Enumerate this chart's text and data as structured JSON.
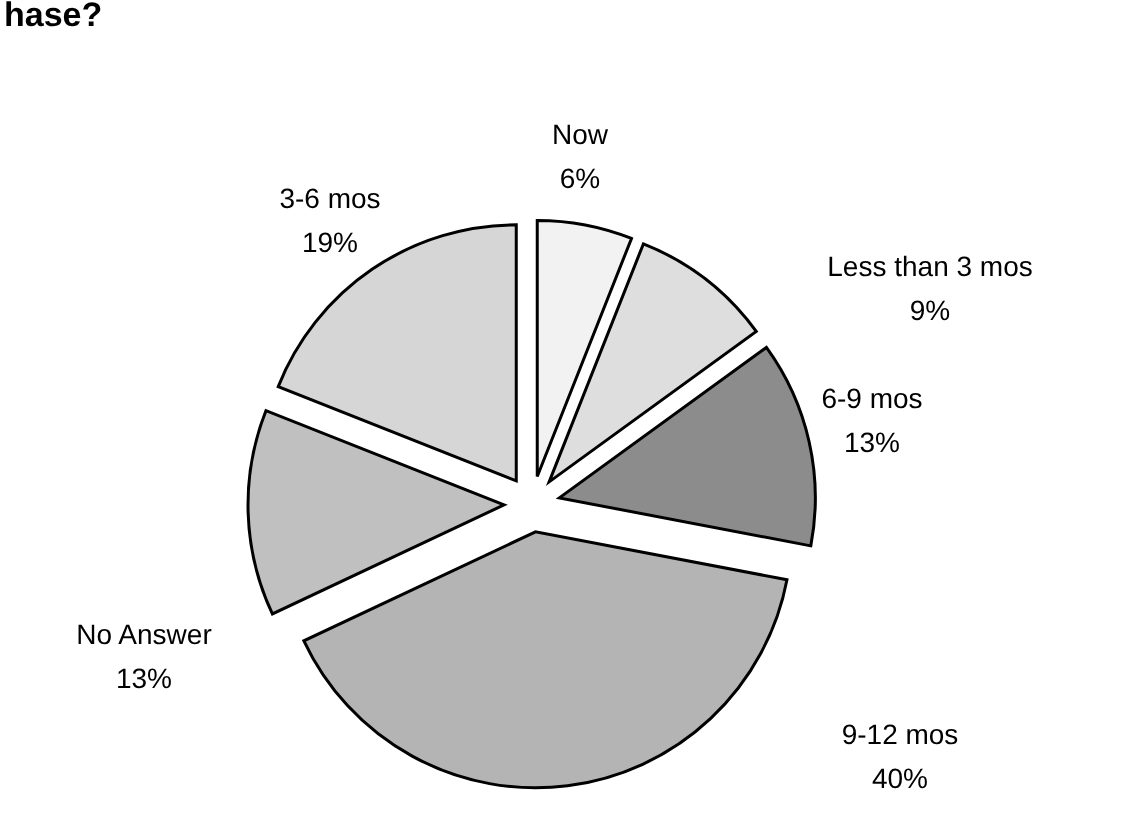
{
  "chart_data": {
    "type": "pie",
    "title": "hase?",
    "categories": [
      "Now",
      "Less than 3 mos",
      "6-9 mos",
      "9-12 mos",
      "No Answer",
      "3-6 mos"
    ],
    "values": [
      6,
      9,
      13,
      40,
      13,
      19
    ],
    "value_labels": [
      "6%",
      "9%",
      "13%",
      "40%",
      "13%",
      "19%"
    ],
    "colors": [
      "#f2f2f2",
      "#dedede",
      "#8c8c8c",
      "#b4b4b4",
      "#c0c0c0",
      "#d6d6d6"
    ]
  }
}
